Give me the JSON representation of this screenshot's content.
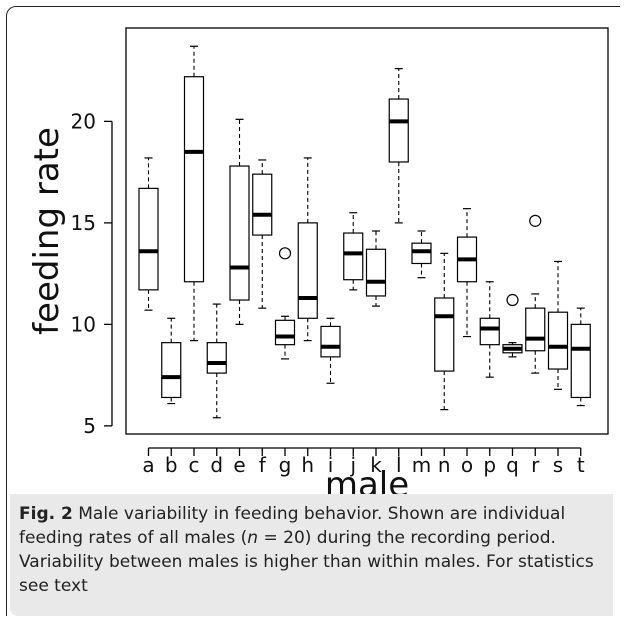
{
  "chart_data": {
    "type": "boxplot",
    "xlabel": "male",
    "ylabel": "feeding rate",
    "ylim": [
      4.6,
      24.6
    ],
    "yticks": [
      5,
      10,
      15,
      20
    ],
    "grid": false,
    "categories": [
      "a",
      "b",
      "c",
      "d",
      "e",
      "f",
      "g",
      "h",
      "i",
      "j",
      "k",
      "l",
      "m",
      "n",
      "o",
      "p",
      "q",
      "r",
      "s",
      "t"
    ],
    "boxes": [
      {
        "label": "a",
        "min": 10.7,
        "q1": 11.7,
        "median": 13.6,
        "q3": 16.7,
        "max": 18.2,
        "outliers": []
      },
      {
        "label": "b",
        "min": 6.1,
        "q1": 6.4,
        "median": 7.4,
        "q3": 9.1,
        "max": 10.3,
        "outliers": []
      },
      {
        "label": "c",
        "min": 9.2,
        "q1": 12.1,
        "median": 18.5,
        "q3": 22.2,
        "max": 23.7,
        "outliers": []
      },
      {
        "label": "d",
        "min": 5.4,
        "q1": 7.6,
        "median": 8.1,
        "q3": 9.1,
        "max": 11.0,
        "outliers": []
      },
      {
        "label": "e",
        "min": 10.0,
        "q1": 11.2,
        "median": 12.8,
        "q3": 17.8,
        "max": 20.1,
        "outliers": []
      },
      {
        "label": "f",
        "min": 10.8,
        "q1": 14.4,
        "median": 15.4,
        "q3": 17.4,
        "max": 18.1,
        "outliers": []
      },
      {
        "label": "g",
        "min": 8.3,
        "q1": 9.0,
        "median": 9.4,
        "q3": 10.2,
        "max": 10.4,
        "outliers": [
          13.5
        ]
      },
      {
        "label": "h",
        "min": 9.2,
        "q1": 10.3,
        "median": 11.3,
        "q3": 15.0,
        "max": 18.2,
        "outliers": []
      },
      {
        "label": "i",
        "min": 7.1,
        "q1": 8.4,
        "median": 8.9,
        "q3": 9.9,
        "max": 10.3,
        "outliers": []
      },
      {
        "label": "j",
        "min": 11.7,
        "q1": 12.2,
        "median": 13.5,
        "q3": 14.5,
        "max": 15.5,
        "outliers": []
      },
      {
        "label": "k",
        "min": 10.9,
        "q1": 11.4,
        "median": 12.1,
        "q3": 13.7,
        "max": 14.6,
        "outliers": []
      },
      {
        "label": "l",
        "min": 15.0,
        "q1": 18.0,
        "median": 20.0,
        "q3": 21.1,
        "max": 22.6,
        "outliers": []
      },
      {
        "label": "m",
        "min": 12.3,
        "q1": 13.0,
        "median": 13.6,
        "q3": 14.0,
        "max": 14.6,
        "outliers": []
      },
      {
        "label": "n",
        "min": 5.8,
        "q1": 7.7,
        "median": 10.4,
        "q3": 11.3,
        "max": 13.5,
        "outliers": []
      },
      {
        "label": "o",
        "min": 9.4,
        "q1": 12.1,
        "median": 13.2,
        "q3": 14.3,
        "max": 15.7,
        "outliers": []
      },
      {
        "label": "p",
        "min": 7.4,
        "q1": 9.0,
        "median": 9.8,
        "q3": 10.3,
        "max": 12.1,
        "outliers": []
      },
      {
        "label": "q",
        "min": 8.4,
        "q1": 8.6,
        "median": 8.8,
        "q3": 9.0,
        "max": 9.1,
        "outliers": [
          11.2
        ]
      },
      {
        "label": "r",
        "min": 7.6,
        "q1": 8.7,
        "median": 9.3,
        "q3": 10.8,
        "max": 11.5,
        "outliers": [
          15.1
        ]
      },
      {
        "label": "s",
        "min": 6.8,
        "q1": 7.8,
        "median": 8.9,
        "q3": 10.6,
        "max": 13.1,
        "outliers": []
      },
      {
        "label": "t",
        "min": 6.0,
        "q1": 6.4,
        "median": 8.8,
        "q3": 10.0,
        "max": 10.8,
        "outliers": []
      }
    ]
  },
  "caption": {
    "label": "Fig. 2",
    "text_before_n": " Male variability in feeding behavior. Shown are individual feeding rates of all males (",
    "n_symbol": "n",
    "text_after_n": " = 20) during the recording period. Variability between males is higher than within males. For statistics see text"
  }
}
